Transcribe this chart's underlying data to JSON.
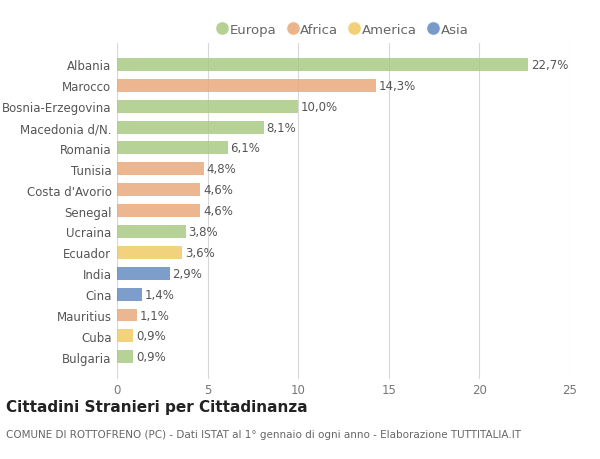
{
  "categories": [
    "Albania",
    "Marocco",
    "Bosnia-Erzegovina",
    "Macedonia d/N.",
    "Romania",
    "Tunisia",
    "Costa d'Avorio",
    "Senegal",
    "Ucraina",
    "Ecuador",
    "India",
    "Cina",
    "Mauritius",
    "Cuba",
    "Bulgaria"
  ],
  "values": [
    22.7,
    14.3,
    10.0,
    8.1,
    6.1,
    4.8,
    4.6,
    4.6,
    3.8,
    3.6,
    2.9,
    1.4,
    1.1,
    0.9,
    0.9
  ],
  "labels": [
    "22,7%",
    "14,3%",
    "10,0%",
    "8,1%",
    "6,1%",
    "4,8%",
    "4,6%",
    "4,6%",
    "3,8%",
    "3,6%",
    "2,9%",
    "1,4%",
    "1,1%",
    "0,9%",
    "0,9%"
  ],
  "continents": [
    "Europa",
    "Africa",
    "Europa",
    "Europa",
    "Europa",
    "Africa",
    "Africa",
    "Africa",
    "Europa",
    "America",
    "Asia",
    "Asia",
    "Africa",
    "America",
    "Europa"
  ],
  "continent_colors": {
    "Europa": "#a8c880",
    "Africa": "#e8a878",
    "America": "#f0c860",
    "Asia": "#6088c0"
  },
  "legend_order": [
    "Europa",
    "Africa",
    "America",
    "Asia"
  ],
  "title": "Cittadini Stranieri per Cittadinanza",
  "subtitle": "COMUNE DI ROTTOFRENO (PC) - Dati ISTAT al 1° gennaio di ogni anno - Elaborazione TUTTITALIA.IT",
  "xlim": [
    0,
    25
  ],
  "xticks": [
    0,
    5,
    10,
    15,
    20,
    25
  ],
  "background_color": "#ffffff",
  "grid_color": "#d8d8d8",
  "bar_height": 0.62,
  "title_fontsize": 11,
  "subtitle_fontsize": 7.5,
  "label_fontsize": 8.5,
  "tick_fontsize": 8.5,
  "legend_fontsize": 9.5
}
